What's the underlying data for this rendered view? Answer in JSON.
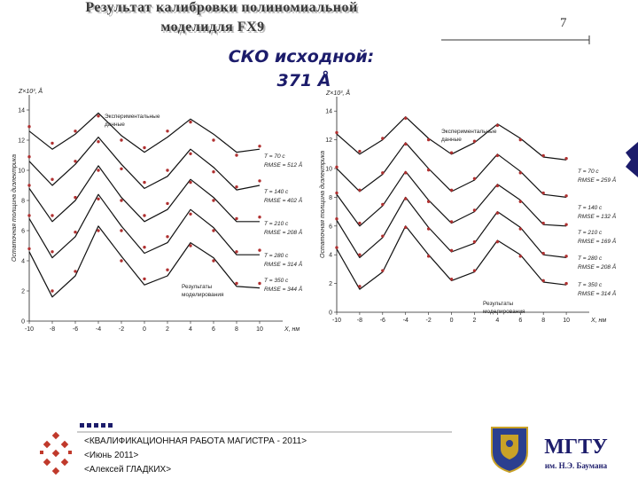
{
  "slide": {
    "title": [
      "Результат калибровки полиномиальной",
      "моделидля FX9"
    ],
    "page_number": "7",
    "heading": [
      "СКО исходной:",
      "371 Å"
    ],
    "footer": [
      "<КВАЛИФИКАЦИОННАЯ РАБОТА МАГИСТРА - 2011>",
      "<Июнь 2011>",
      "<Алексей ГЛАДКИХ>"
    ],
    "logo_title": "МГТУ",
    "logo_subtitle": "им. Н.Э. Баумана"
  },
  "chart_data": [
    {
      "type": "line",
      "y_axis_title": "Z×10³, Å",
      "y_label": "Остаточная толщина диэлектрика",
      "x_label": "X, нм",
      "x": [
        -10,
        -8,
        -6,
        -4,
        -2,
        0,
        2,
        4,
        6,
        8,
        10
      ],
      "xlim": [
        -10,
        12
      ],
      "ylim": [
        0,
        15
      ],
      "xticks": [
        -10,
        -8,
        -6,
        -4,
        -2,
        0,
        2,
        4,
        6,
        8,
        10
      ],
      "yticks": [
        0,
        2,
        4,
        6,
        8,
        10,
        12,
        14
      ],
      "series": [
        {
          "style": "line",
          "color": "#111111",
          "values": [
            12.6,
            11.4,
            12.4,
            13.8,
            12.3,
            11.2,
            12.2,
            13.4,
            12.4,
            11.2,
            11.4
          ]
        },
        {
          "style": "line",
          "color": "#111111",
          "values": [
            10.6,
            9.0,
            10.4,
            12.2,
            10.4,
            8.8,
            9.6,
            11.4,
            10.2,
            8.7,
            9.0
          ]
        },
        {
          "style": "line",
          "color": "#111111",
          "values": [
            8.8,
            6.6,
            8.0,
            10.3,
            8.2,
            6.6,
            7.4,
            9.4,
            8.2,
            6.6,
            6.6
          ]
        },
        {
          "style": "line",
          "color": "#111111",
          "values": [
            6.8,
            4.2,
            5.6,
            8.4,
            6.3,
            4.5,
            5.2,
            7.4,
            6.2,
            4.4,
            4.4
          ]
        },
        {
          "style": "line",
          "color": "#111111",
          "values": [
            4.6,
            1.6,
            3.0,
            6.3,
            4.3,
            2.4,
            3.0,
            5.2,
            4.2,
            2.3,
            2.2
          ]
        },
        {
          "style": "dots",
          "color": "#b03030",
          "values": [
            12.9,
            11.8,
            12.6,
            13.6,
            12.0,
            11.5,
            12.6,
            13.2,
            12.0,
            11.0,
            11.6
          ]
        },
        {
          "style": "dots",
          "color": "#b03030",
          "values": [
            10.9,
            9.4,
            10.6,
            11.9,
            10.1,
            9.2,
            10.0,
            11.1,
            9.9,
            8.9,
            9.3
          ]
        },
        {
          "style": "dots",
          "color": "#b03030",
          "values": [
            9.0,
            7.0,
            8.2,
            10.0,
            8.0,
            7.0,
            7.8,
            9.2,
            8.0,
            6.8,
            6.9
          ]
        },
        {
          "style": "dots",
          "color": "#b03030",
          "values": [
            7.0,
            4.6,
            5.9,
            8.1,
            6.0,
            4.9,
            5.6,
            7.1,
            6.0,
            4.6,
            4.7
          ]
        },
        {
          "style": "dots",
          "color": "#b03030",
          "values": [
            4.8,
            2.0,
            3.3,
            6.0,
            4.0,
            2.8,
            3.4,
            5.0,
            4.0,
            2.5,
            2.5
          ]
        }
      ],
      "notes": {
        "experimental": [
          "Экспериментальные",
          "данные"
        ],
        "model": [
          "Результаты",
          "моделирования"
        ]
      },
      "runs": [
        {
          "time": "T = 70 c",
          "rmse": "RMSE = 512 Å"
        },
        {
          "time": "T = 140 c",
          "rmse": "RMSE = 402 Å"
        },
        {
          "time": "T = 210 c",
          "rmse": "RMSE = 208 Å"
        },
        {
          "time": "T = 280 c",
          "rmse": "RMSE = 314 Å"
        },
        {
          "time": "T = 350 c",
          "rmse": "RMSE = 344 Å"
        }
      ]
    },
    {
      "type": "line",
      "y_axis_title": "Z×10³, Å",
      "y_label": "Остаточная толщина диэлектрика",
      "x_label": "X, нм",
      "x": [
        -10,
        -8,
        -6,
        -4,
        -2,
        0,
        2,
        4,
        6,
        8,
        10
      ],
      "xlim": [
        -10,
        12
      ],
      "ylim": [
        0,
        15
      ],
      "xticks": [
        -10,
        -8,
        -6,
        -4,
        -2,
        0,
        2,
        4,
        6,
        8,
        10
      ],
      "yticks": [
        0,
        2,
        4,
        6,
        8,
        10,
        12,
        14
      ],
      "series": [
        {
          "style": "line",
          "color": "#111111",
          "values": [
            12.4,
            11.0,
            12.0,
            13.6,
            12.1,
            11.0,
            11.8,
            13.1,
            12.1,
            10.8,
            10.6
          ]
        },
        {
          "style": "line",
          "color": "#111111",
          "values": [
            10.0,
            8.4,
            9.6,
            11.8,
            10.0,
            8.4,
            9.2,
            11.0,
            9.8,
            8.2,
            8.0
          ]
        },
        {
          "style": "line",
          "color": "#111111",
          "values": [
            8.2,
            6.0,
            7.4,
            9.8,
            7.8,
            6.2,
            7.0,
            8.9,
            7.8,
            6.1,
            6.0
          ]
        },
        {
          "style": "line",
          "color": "#111111",
          "values": [
            6.4,
            3.8,
            5.2,
            8.0,
            5.9,
            4.2,
            4.8,
            7.0,
            5.9,
            4.0,
            3.8
          ]
        },
        {
          "style": "line",
          "color": "#111111",
          "values": [
            4.4,
            1.6,
            2.8,
            6.0,
            4.0,
            2.2,
            2.8,
            5.0,
            4.0,
            2.1,
            1.9
          ]
        },
        {
          "style": "dots",
          "color": "#b03030",
          "values": [
            12.5,
            11.2,
            12.1,
            13.5,
            12.0,
            11.1,
            11.9,
            13.0,
            12.0,
            10.9,
            10.7
          ]
        },
        {
          "style": "dots",
          "color": "#b03030",
          "values": [
            10.1,
            8.5,
            9.7,
            11.7,
            9.9,
            8.5,
            9.3,
            10.9,
            9.7,
            8.3,
            8.1
          ]
        },
        {
          "style": "dots",
          "color": "#b03030",
          "values": [
            8.3,
            6.2,
            7.5,
            9.7,
            7.7,
            6.3,
            7.1,
            8.8,
            7.7,
            6.2,
            6.1
          ]
        },
        {
          "style": "dots",
          "color": "#b03030",
          "values": [
            6.5,
            4.0,
            5.3,
            7.9,
            5.8,
            4.3,
            4.9,
            6.9,
            5.8,
            4.1,
            3.9
          ]
        },
        {
          "style": "dots",
          "color": "#b03030",
          "values": [
            4.5,
            1.8,
            2.9,
            5.9,
            3.9,
            2.3,
            2.9,
            4.9,
            3.9,
            2.2,
            2.0
          ]
        }
      ],
      "notes": {
        "experimental": [
          "Экспериментальные",
          "данные"
        ],
        "model": [
          "Результаты",
          "моделирования"
        ]
      },
      "runs": [
        {
          "time": "T = 70 c",
          "rmse": "RMSE = 259 Å"
        },
        {
          "time": "T = 140 c",
          "rmse": "RMSE = 132 Å"
        },
        {
          "time": "T = 210 c",
          "rmse": "RMSE = 169 Å"
        },
        {
          "time": "T = 280 c",
          "rmse": "RMSE = 208 Å"
        },
        {
          "time": "T = 350 c",
          "rmse": "RMSE = 314 Å"
        }
      ]
    }
  ]
}
